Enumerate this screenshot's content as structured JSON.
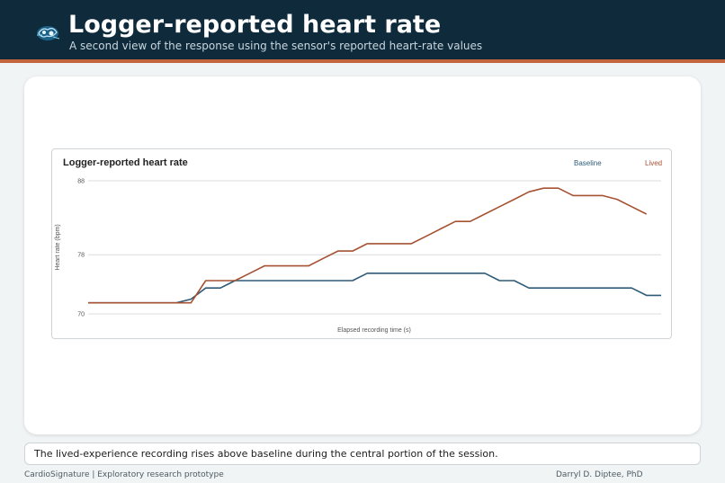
{
  "header": {
    "title": "Logger-reported heart rate",
    "subtitle": "A second view of the response using the sensor's reported heart-rate values",
    "logo_icon": "brain-icon"
  },
  "caption": "The lived-experience recording rises above baseline during the central portion of the session.",
  "footer": {
    "left": "CardioSignature | Exploratory research prototype",
    "right": "Darryl D. Diptee, PhD"
  },
  "colors": {
    "header_bg": "#0f2a3b",
    "accent": "#c4643d",
    "baseline": "#2e5b78",
    "lived": "#a65233"
  },
  "chart_data": {
    "type": "line",
    "title": "Logger-reported heart rate",
    "xlabel": "Elapsed recording time (s)",
    "ylabel": "Heart rate (bpm)",
    "ylim": [
      70,
      88
    ],
    "yticks": [
      70,
      78,
      88
    ],
    "grid": true,
    "legend_position": "top-right",
    "series": [
      {
        "name": "Baseline",
        "color": "#2e5b78",
        "values": [
          71.5,
          71.5,
          71.5,
          71.5,
          71.5,
          71.5,
          71.5,
          72,
          73.5,
          73.5,
          74.5,
          74.5,
          74.5,
          74.5,
          74.5,
          74.5,
          74.5,
          74.5,
          74.5,
          75.5,
          75.5,
          75.5,
          75.5,
          75.5,
          75.5,
          75.5,
          75.5,
          75.5,
          74.5,
          74.5,
          73.5,
          73.5,
          73.5,
          73.5,
          73.5,
          73.5,
          73.5,
          73.5,
          72.5,
          72.5
        ]
      },
      {
        "name": "Lived",
        "color": "#a65233",
        "values": [
          71.5,
          71.5,
          71.5,
          71.5,
          71.5,
          71.5,
          71.5,
          71.5,
          74.5,
          74.5,
          74.5,
          75.5,
          76.5,
          76.5,
          76.5,
          76.5,
          77.5,
          78.5,
          78.5,
          79.5,
          79.5,
          79.5,
          79.5,
          80.5,
          81.5,
          82.5,
          82.5,
          83.5,
          84.5,
          85.5,
          86.5,
          87,
          87,
          86,
          86,
          86,
          85.5,
          84.5,
          83.5
        ]
      }
    ]
  }
}
